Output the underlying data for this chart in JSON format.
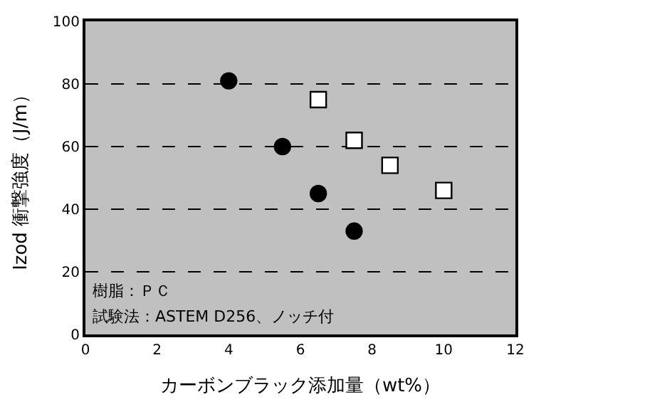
{
  "chart_data": {
    "type": "scatter",
    "xlabel": "カーボンブラック添加量（wt%）",
    "ylabel": "Izod 衝撃強度（J/m）",
    "xlim": [
      0,
      12
    ],
    "xticks": [
      0,
      2,
      4,
      6,
      8,
      10,
      12
    ],
    "ylim": [
      0,
      100
    ],
    "yticks": [
      0,
      20,
      40,
      60,
      80,
      100
    ],
    "grid": "y",
    "annotations": [
      "樹脂：ＰＣ",
      "試験法：ASTEM D256、ノッチ付"
    ],
    "series": [
      {
        "color": "#ffffff",
        "marker": "square",
        "x": [
          6.5,
          7.5,
          8.5,
          10
        ],
        "values": [
          75,
          62,
          54,
          46
        ]
      },
      {
        "color": "#000000",
        "marker": "circle",
        "x": [
          4,
          5.5,
          6.5,
          7.5
        ],
        "values": [
          81,
          60,
          45,
          33
        ]
      }
    ]
  }
}
